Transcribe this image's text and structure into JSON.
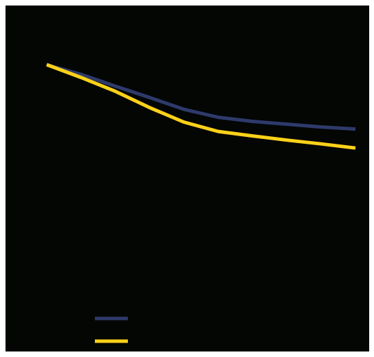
{
  "chart_data": {
    "type": "line",
    "title": "",
    "xlabel": "",
    "ylabel": "",
    "x": [
      0,
      1,
      2,
      3,
      4,
      5,
      6,
      7,
      8,
      9
    ],
    "xlim": [
      -1.2,
      9.4
    ],
    "ylim": [
      0,
      100
    ],
    "series": [
      {
        "values": [
          82.9,
          80.1,
          76.7,
          73.4,
          70.0,
          67.7,
          66.5,
          65.7,
          64.9,
          64.3
        ],
        "color": "#2e3a6b"
      },
      {
        "values": [
          82.9,
          79.2,
          75.2,
          70.5,
          66.3,
          63.6,
          62.3,
          61.1,
          60.0,
          58.8
        ],
        "color": "#ffd219"
      }
    ],
    "grid": false,
    "legend": {
      "position": "bottom-left",
      "entries": [
        "",
        ""
      ]
    },
    "background": "#040604",
    "border_color": "#ffffff"
  }
}
